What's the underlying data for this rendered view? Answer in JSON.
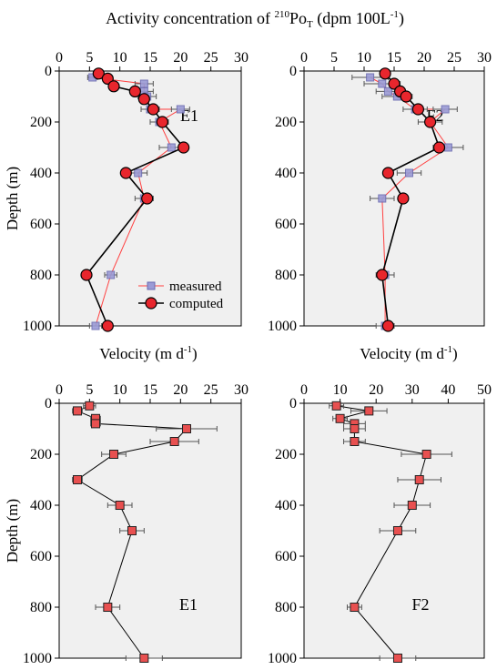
{
  "figure": {
    "top_title": "Activity concentration of 210PoT (dpm 100L-1)",
    "top_title_parts": {
      "a": "Activity concentration of ",
      "sup": "210",
      "b": "Po",
      "sub": "T",
      "c": " (dpm 100L",
      "sup2": "-1",
      "d": ")"
    },
    "velocity_title_parts": {
      "a": "Velocity (m d",
      "sup": "-1",
      "b": ")"
    }
  },
  "colors": {
    "panel_bg": "#f0f0f0",
    "measured_line": "#ff4040",
    "measured_marker": "#9b9bd6",
    "computed_marker": "#e8262d",
    "velocity_marker": "#e85050",
    "line_black": "#000000"
  },
  "chart_data": [
    {
      "id": "E1-activity",
      "type": "line",
      "panel_label": "E1",
      "xlabel": "",
      "ylabel": "Depth (m)",
      "xlim": [
        0,
        30
      ],
      "ylim": [
        1000,
        0
      ],
      "xticks": [
        0,
        5,
        10,
        15,
        20,
        25,
        30
      ],
      "yticks": [
        0,
        200,
        400,
        600,
        800,
        1000
      ],
      "legend": "bottom-right",
      "series": [
        {
          "name": "measured",
          "marker": "square",
          "points": [
            {
              "x": 5.5,
              "y": 25,
              "err": 0.8
            },
            {
              "x": 14,
              "y": 50,
              "err": 1.5
            },
            {
              "x": 14,
              "y": 80,
              "err": 1.5
            },
            {
              "x": 14.5,
              "y": 100,
              "err": 1.5
            },
            {
              "x": 15,
              "y": 150,
              "err": 1.5
            },
            {
              "x": 20,
              "y": 150,
              "err": 1.5
            },
            {
              "x": 16.5,
              "y": 200,
              "err": 1.5
            },
            {
              "x": 18.5,
              "y": 300,
              "err": 2
            },
            {
              "x": 13,
              "y": 400,
              "err": 1.5
            },
            {
              "x": 14,
              "y": 500,
              "err": 1.5
            },
            {
              "x": 8.5,
              "y": 800,
              "err": 1
            },
            {
              "x": 6,
              "y": 1000,
              "err": 1
            }
          ]
        },
        {
          "name": "computed",
          "marker": "circle",
          "points": [
            {
              "x": 6.5,
              "y": 10
            },
            {
              "x": 8,
              "y": 30
            },
            {
              "x": 9,
              "y": 60
            },
            {
              "x": 12.5,
              "y": 80
            },
            {
              "x": 14,
              "y": 110
            },
            {
              "x": 15.5,
              "y": 150
            },
            {
              "x": 17,
              "y": 200
            },
            {
              "x": 20.5,
              "y": 300
            },
            {
              "x": 11,
              "y": 400
            },
            {
              "x": 14.5,
              "y": 500
            },
            {
              "x": 4.5,
              "y": 800
            },
            {
              "x": 8,
              "y": 1000
            }
          ]
        }
      ]
    },
    {
      "id": "F2-activity",
      "type": "line",
      "panel_label": "F2",
      "xlabel": "",
      "ylabel": "",
      "xlim": [
        0,
        30
      ],
      "ylim": [
        1000,
        0
      ],
      "xticks": [
        0,
        5,
        10,
        15,
        20,
        25,
        30
      ],
      "yticks": [
        0,
        200,
        400,
        600,
        800,
        1000
      ],
      "series": [
        {
          "name": "measured",
          "marker": "square",
          "points": [
            {
              "x": 11,
              "y": 25,
              "err": 3
            },
            {
              "x": 13,
              "y": 50,
              "err": 3
            },
            {
              "x": 14,
              "y": 80,
              "err": 2
            },
            {
              "x": 15.5,
              "y": 100,
              "err": 2.5
            },
            {
              "x": 18.5,
              "y": 150,
              "err": 2
            },
            {
              "x": 21,
              "y": 200,
              "err": 2
            },
            {
              "x": 23.5,
              "y": 150,
              "err": 2
            },
            {
              "x": 24,
              "y": 300,
              "err": 2.5
            },
            {
              "x": 17.5,
              "y": 400,
              "err": 2
            },
            {
              "x": 13,
              "y": 500,
              "err": 2
            },
            {
              "x": 13.5,
              "y": 800,
              "err": 1.5
            },
            {
              "x": 13.5,
              "y": 1000,
              "err": 1.5
            }
          ]
        },
        {
          "name": "computed",
          "marker": "circle",
          "points": [
            {
              "x": 13.5,
              "y": 10
            },
            {
              "x": 15,
              "y": 50
            },
            {
              "x": 16,
              "y": 80
            },
            {
              "x": 17,
              "y": 100
            },
            {
              "x": 19,
              "y": 150
            },
            {
              "x": 21,
              "y": 200
            },
            {
              "x": 22.5,
              "y": 300
            },
            {
              "x": 14,
              "y": 400
            },
            {
              "x": 16.5,
              "y": 500
            },
            {
              "x": 13,
              "y": 800
            },
            {
              "x": 14,
              "y": 1000
            }
          ]
        }
      ]
    },
    {
      "id": "E1-velocity",
      "type": "line",
      "panel_label": "E1",
      "xlabel": "",
      "ylabel": "Depth (m)",
      "xlim": [
        0,
        30
      ],
      "ylim": [
        1000,
        0
      ],
      "xticks": [
        0,
        5,
        10,
        15,
        20,
        25,
        30
      ],
      "yticks": [
        0,
        200,
        400,
        600,
        800,
        1000
      ],
      "series": [
        {
          "name": "",
          "marker": "square",
          "points": [
            {
              "x": 5,
              "y": 10,
              "err": 1
            },
            {
              "x": 3,
              "y": 30,
              "err": 0.8
            },
            {
              "x": 6,
              "y": 60,
              "err": 0.8
            },
            {
              "x": 6,
              "y": 80,
              "err": 0.8
            },
            {
              "x": 21,
              "y": 100,
              "err": 5
            },
            {
              "x": 19,
              "y": 150,
              "err": 4
            },
            {
              "x": 9,
              "y": 200,
              "err": 2
            },
            {
              "x": 3,
              "y": 300,
              "err": 0.8
            },
            {
              "x": 10,
              "y": 400,
              "err": 2
            },
            {
              "x": 12,
              "y": 500,
              "err": 2
            },
            {
              "x": 8,
              "y": 800,
              "err": 2
            },
            {
              "x": 14,
              "y": 1000,
              "err": 3
            }
          ]
        }
      ]
    },
    {
      "id": "F2-velocity",
      "type": "line",
      "panel_label": "F2",
      "xlabel": "",
      "ylabel": "",
      "xlim": [
        0,
        50
      ],
      "ylim": [
        1000,
        0
      ],
      "xticks": [
        0,
        10,
        20,
        30,
        40,
        50
      ],
      "yticks": [
        0,
        200,
        400,
        600,
        800,
        1000
      ],
      "series": [
        {
          "name": "",
          "marker": "square",
          "points": [
            {
              "x": 9,
              "y": 10,
              "err": 2
            },
            {
              "x": 18,
              "y": 30,
              "err": 5
            },
            {
              "x": 10,
              "y": 60,
              "err": 2
            },
            {
              "x": 14,
              "y": 80,
              "err": 3
            },
            {
              "x": 14,
              "y": 100,
              "err": 3
            },
            {
              "x": 14,
              "y": 150,
              "err": 3
            },
            {
              "x": 34,
              "y": 200,
              "err": 7
            },
            {
              "x": 32,
              "y": 300,
              "err": 6
            },
            {
              "x": 30,
              "y": 400,
              "err": 5
            },
            {
              "x": 26,
              "y": 500,
              "err": 5
            },
            {
              "x": 14,
              "y": 800,
              "err": 2
            },
            {
              "x": 26,
              "y": 1000,
              "err": 5
            }
          ]
        }
      ]
    }
  ]
}
